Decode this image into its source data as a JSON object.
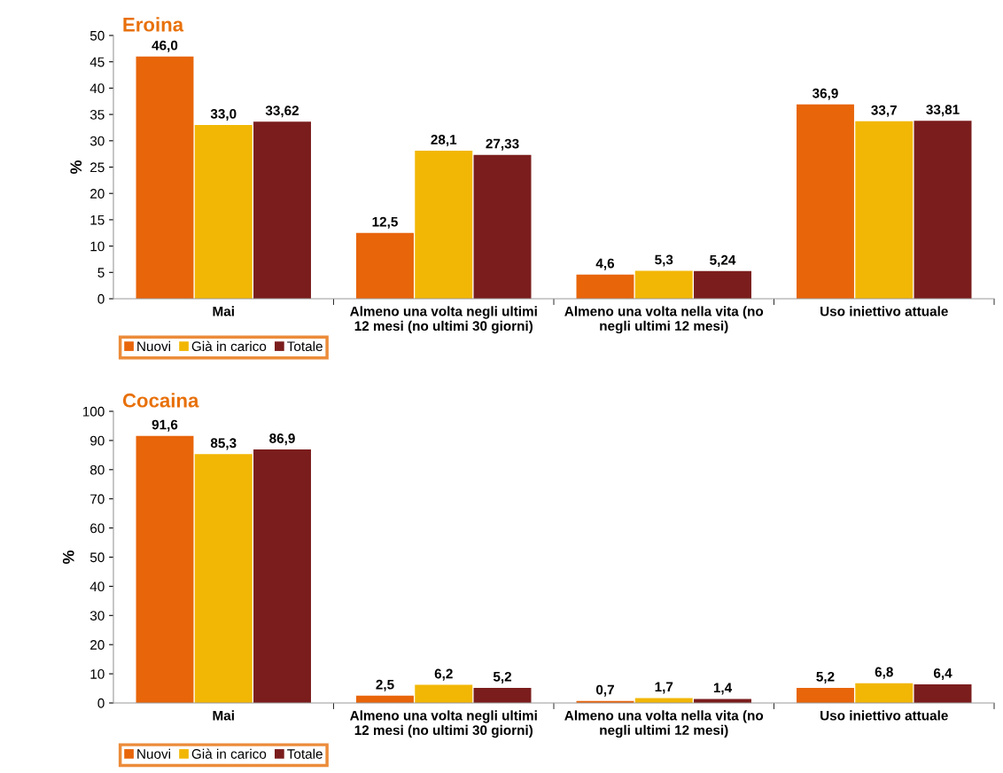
{
  "chart_data": [
    {
      "type": "bar",
      "title": "Eroina",
      "ylabel": "%",
      "categories": [
        "Mai",
        "Almeno una volta negli ultimi\n12 mesi (no ultimi 30 giorni)",
        "Almeno una volta nella vita (no\nnegli ultimi 12 mesi)",
        "Uso iniettivo attuale"
      ],
      "series": [
        {
          "name": "Nuovi",
          "color": "#e8650a",
          "values": [
            46.0,
            12.5,
            4.6,
            36.9
          ],
          "value_labels": [
            "46,0",
            "12,5",
            "4,6",
            "36,9"
          ]
        },
        {
          "name": "Già in carico",
          "color": "#f2b705",
          "values": [
            33.0,
            28.1,
            5.3,
            33.7
          ],
          "value_labels": [
            "33,0",
            "28,1",
            "5,3",
            "33,7"
          ]
        },
        {
          "name": "Totale",
          "color": "#7b1d1d",
          "values": [
            33.62,
            27.33,
            5.24,
            33.81
          ],
          "value_labels": [
            "33,62",
            "27,33",
            "5,24",
            "33,81"
          ]
        }
      ],
      "ylim": [
        0,
        50
      ],
      "yticks": [
        0,
        5,
        10,
        15,
        20,
        25,
        30,
        35,
        40,
        45,
        50
      ],
      "grid": false,
      "legend": "bottom left"
    },
    {
      "type": "bar",
      "title": "Cocaina",
      "ylabel": "%",
      "categories": [
        "Mai",
        "Almeno una volta negli ultimi\n12 mesi (no ultimi 30 giorni)",
        "Almeno una volta nella vita (no\nnegli ultimi 12 mesi)",
        "Uso iniettivo attuale"
      ],
      "series": [
        {
          "name": "Nuovi",
          "color": "#e8650a",
          "values": [
            91.6,
            2.5,
            0.7,
            5.2
          ],
          "value_labels": [
            "91,6",
            "2,5",
            "0,7",
            "5,2"
          ]
        },
        {
          "name": "Già in carico",
          "color": "#f2b705",
          "values": [
            85.3,
            6.2,
            1.7,
            6.8
          ],
          "value_labels": [
            "85,3",
            "6,2",
            "1,7",
            "6,8"
          ]
        },
        {
          "name": "Totale",
          "color": "#7b1d1d",
          "values": [
            86.9,
            5.2,
            1.4,
            6.4
          ],
          "value_labels": [
            "86,9",
            "5,2",
            "1,4",
            "6,4"
          ]
        }
      ],
      "ylim": [
        0,
        100
      ],
      "yticks": [
        0,
        10,
        20,
        30,
        40,
        50,
        60,
        70,
        80,
        90,
        100
      ],
      "grid": false,
      "legend": "bottom left"
    }
  ]
}
